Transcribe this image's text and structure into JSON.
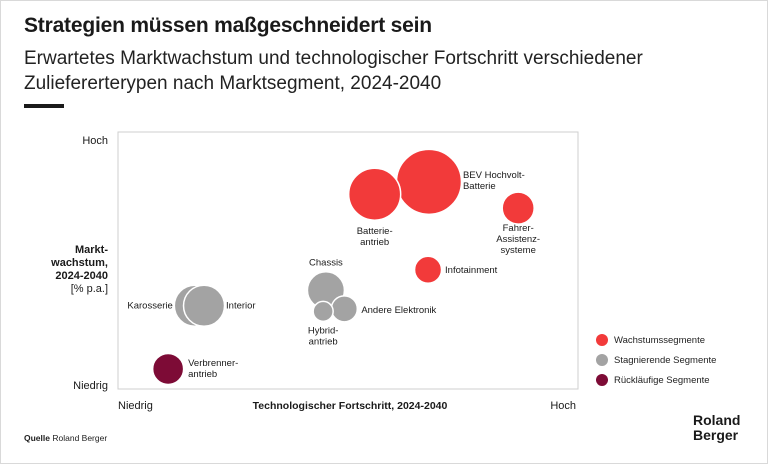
{
  "title": "Strategien müssen maßgeschneidert sein",
  "subtitle": "Erwartetes Marktwachstum und technologischer Fortschritt verschiedener Zuliefererterypen nach Marktsegment, 2024-2040",
  "source": {
    "label": "Quelle",
    "text": "Roland Berger"
  },
  "logo": {
    "line1": "Roland",
    "line2": "Berger"
  },
  "colors": {
    "growth": "#f23a3a",
    "stagnant": "#a3a3a3",
    "declining": "#7d0b36",
    "frame": "#cfcfcf",
    "text": "#1a1a1a"
  },
  "chart_data": {
    "type": "scatter",
    "subtype": "bubble",
    "xlabel": "Technologischer Fortschritt, 2024-2040",
    "ylabel": {
      "line1": "Markt-",
      "line2": "wachstum,",
      "line3": "2024-2040",
      "unit": "[% p.a.]"
    },
    "x_ticks": {
      "low": "Niedrig",
      "high": "Hoch"
    },
    "y_ticks": {
      "low": "Niedrig",
      "high": "Hoch"
    },
    "xlim": [
      0,
      100
    ],
    "ylim": [
      0,
      100
    ],
    "legend": [
      {
        "label": "Wachstumssegmente",
        "category": "growth"
      },
      {
        "label": "Stagnierende Segmente",
        "category": "stagnant"
      },
      {
        "label": "Rückläufige Segmente",
        "category": "declining"
      }
    ],
    "points": [
      {
        "name": "Batterieantrieb",
        "label_lines": [
          "Batterie-",
          "antrieb"
        ],
        "x": 55.8,
        "y": 75.8,
        "size": 52,
        "category": "growth"
      },
      {
        "name": "BEV Hochvolt-Batterie",
        "label_lines": [
          "BEV Hochvolt-",
          "Batterie"
        ],
        "x": 67.6,
        "y": 80.6,
        "size": 65,
        "category": "growth"
      },
      {
        "name": "Fahrer-Assistenzsysteme",
        "label_lines": [
          "Fahrer-",
          "Assistenz-",
          "systeme"
        ],
        "x": 87.0,
        "y": 70.4,
        "size": 32,
        "category": "growth"
      },
      {
        "name": "Infotainment",
        "label_lines": [
          "Infotainment"
        ],
        "x": 67.4,
        "y": 46.4,
        "size": 27,
        "category": "growth"
      },
      {
        "name": "Chassis",
        "label_lines": [
          "Chassis"
        ],
        "x": 45.2,
        "y": 38.4,
        "size": 37,
        "category": "stagnant"
      },
      {
        "name": "Hybridantrieb",
        "label_lines": [
          "Hybrid-",
          "antrieb"
        ],
        "x": 44.6,
        "y": 30.2,
        "size": 20,
        "category": "stagnant"
      },
      {
        "name": "Andere Elektronik",
        "label_lines": [
          "Andere Elektronik"
        ],
        "x": 49.2,
        "y": 31.2,
        "size": 26,
        "category": "stagnant"
      },
      {
        "name": "Karosserie",
        "label_lines": [
          "Karosserie"
        ],
        "x": 16.7,
        "y": 32.4,
        "size": 41,
        "category": "stagnant"
      },
      {
        "name": "Interior",
        "label_lines": [
          "Interior"
        ],
        "x": 18.7,
        "y": 32.4,
        "size": 41,
        "category": "stagnant"
      },
      {
        "name": "Verbrennerantrieb",
        "label_lines": [
          "Verbrenner-",
          "antrieb"
        ],
        "x": 10.9,
        "y": 7.8,
        "size": 31,
        "category": "declining"
      }
    ]
  }
}
